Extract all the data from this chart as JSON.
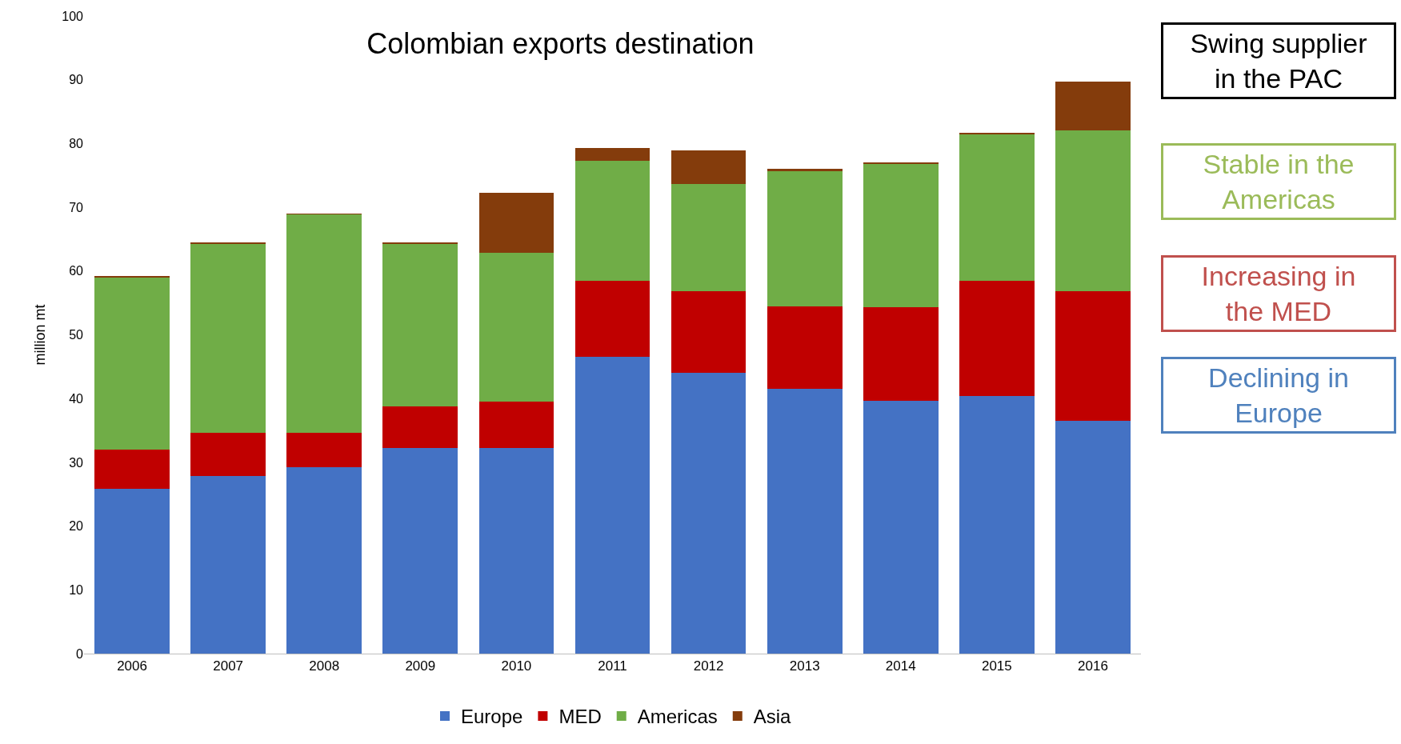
{
  "chart_data": {
    "type": "bar",
    "stacked": true,
    "title": "Colombian exports destination",
    "ylabel": "million mt",
    "categories": [
      "2006",
      "2007",
      "2008",
      "2009",
      "2010",
      "2011",
      "2012",
      "2013",
      "2014",
      "2015",
      "2016"
    ],
    "series": [
      {
        "name": "Europe",
        "color": "#4472c4",
        "values": [
          25.8,
          27.8,
          29.2,
          32.2,
          32.2,
          46.6,
          44.1,
          41.5,
          39.7,
          40.4,
          36.5
        ]
      },
      {
        "name": "MED",
        "color": "#c00000",
        "values": [
          6.2,
          6.8,
          5.4,
          6.6,
          7.3,
          11.9,
          12.8,
          12.9,
          14.6,
          18.1,
          20.4
        ]
      },
      {
        "name": "Americas",
        "color": "#70ad47",
        "values": [
          27.0,
          29.7,
          34.3,
          25.5,
          23.3,
          18.8,
          16.8,
          21.2,
          22.6,
          23.0,
          25.2
        ]
      },
      {
        "name": "Asia",
        "color": "#843c0c",
        "values": [
          0.2,
          0.2,
          0.1,
          0.2,
          9.5,
          2.0,
          5.2,
          0.4,
          0.1,
          0.2,
          7.6
        ]
      }
    ],
    "ylim": [
      0,
      100
    ],
    "yticks": [
      0,
      10,
      20,
      30,
      40,
      50,
      60,
      70,
      80,
      90,
      100
    ],
    "legend": "bottom",
    "annotations": [
      "Swing supplier in the PAC",
      "Stable in the Americas",
      "Increasing in the MED",
      "Declining in Europe"
    ]
  }
}
